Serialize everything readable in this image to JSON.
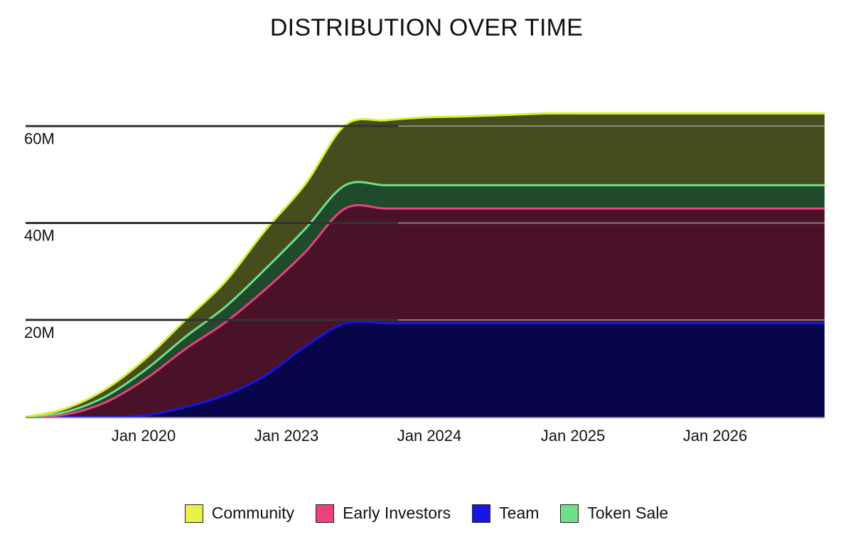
{
  "chart_data": {
    "type": "area",
    "title": "DISTRIBUTION OVER TIME",
    "stacked": true,
    "xlabel": "",
    "ylabel": "",
    "x_ticks": [
      "Jan 2020",
      "Jan 2023",
      "Jan 2024",
      "Jan 2025",
      "Jan 2026"
    ],
    "y_ticks": [
      "20M",
      "40M",
      "60M"
    ],
    "y_tick_values": [
      20,
      40,
      60
    ],
    "ylim": [
      0,
      64
    ],
    "x": [
      0,
      1,
      2,
      3,
      4,
      5,
      6,
      7,
      8,
      9,
      10,
      11,
      12,
      13,
      14,
      15,
      16,
      17,
      18,
      19,
      20
    ],
    "series": [
      {
        "name": "Team",
        "color": "#1a14e6",
        "fill": "#07064a",
        "values": [
          0,
          0,
          0,
          0.3,
          2,
          4.5,
          8.5,
          14.5,
          19.3,
          19.3,
          19.3,
          19.3,
          19.3,
          19.3,
          19.3,
          19.3,
          19.3,
          19.3,
          19.3,
          19.3,
          19.3
        ]
      },
      {
        "name": "Early Investors",
        "color": "#e8437f",
        "fill": "#4a1228",
        "values": [
          0,
          0.5,
          3,
          7.5,
          12,
          15,
          17.8,
          19.5,
          23.7,
          23.7,
          23.7,
          23.7,
          23.7,
          23.7,
          23.7,
          23.7,
          23.7,
          23.7,
          23.7,
          23.7,
          23.7
        ]
      },
      {
        "name": "Token Sale",
        "color": "#6ee08a",
        "fill": "#1f4a2b",
        "values": [
          0,
          0.5,
          1.2,
          1.9,
          2.5,
          3.2,
          4.2,
          4.8,
          4.8,
          4.8,
          4.8,
          4.8,
          4.8,
          4.8,
          4.8,
          4.8,
          4.8,
          4.8,
          4.8,
          4.8,
          4.8
        ]
      },
      {
        "name": "Community",
        "color": "#dcef30",
        "fill": "#464d1c",
        "values": [
          0,
          0.7,
          1.5,
          2.3,
          3.5,
          5.2,
          8.0,
          9.2,
          12.4,
          13.4,
          14.0,
          14.2,
          14.5,
          14.8,
          14.8,
          14.8,
          14.8,
          14.8,
          14.8,
          14.8,
          14.8
        ]
      }
    ],
    "grid": true,
    "legend_position": "bottom-center"
  },
  "legend": {
    "items": [
      {
        "label": "Community",
        "color": "#e9f246"
      },
      {
        "label": "Early Investors",
        "color": "#e8437f"
      },
      {
        "label": "Team",
        "color": "#1a14e6"
      },
      {
        "label": "Token Sale",
        "color": "#6ee08a"
      }
    ]
  }
}
